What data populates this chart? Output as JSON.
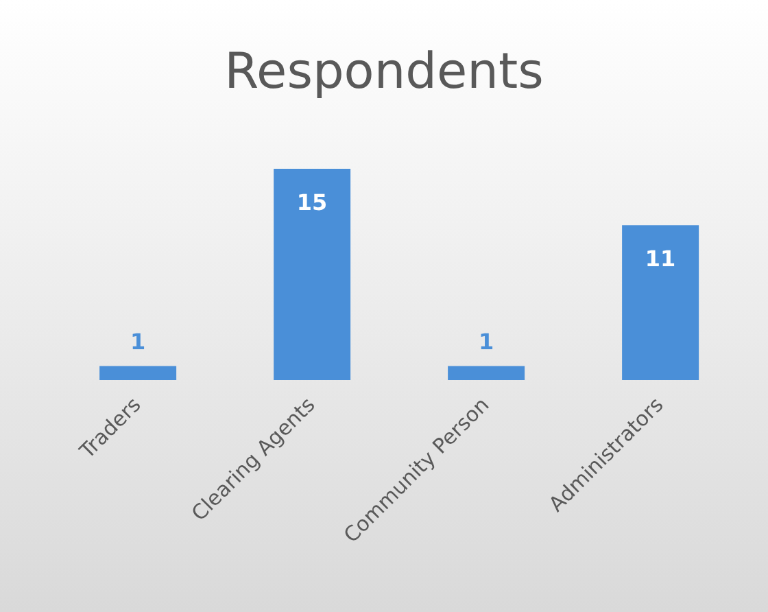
{
  "chart_data": {
    "type": "bar",
    "title": "Respondents",
    "categories": [
      "Traders",
      "Clearing Agents",
      "Community Person",
      "Administrators"
    ],
    "values": [
      1,
      15,
      1,
      11
    ],
    "color": "#4a8fd8",
    "data_labels": true,
    "grid": false,
    "legend": false
  }
}
